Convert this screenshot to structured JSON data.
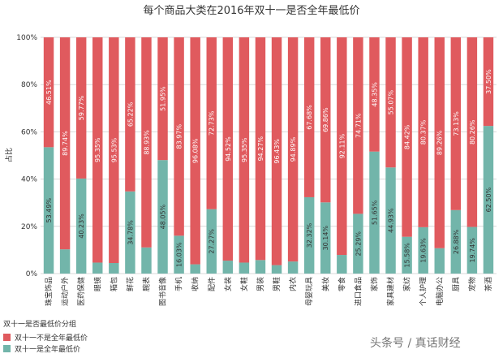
{
  "colors": {
    "not_lowest": "#e05a5e",
    "lowest": "#72b5aa",
    "grid": "#d9d9d9",
    "text": "#333333"
  },
  "watermark": "头条号 / 真话财经",
  "chart_data": {
    "type": "bar",
    "stacked": true,
    "title": "每个商品大类在2016年双十一是否全年最低价",
    "ylabel": "占比",
    "ylim": [
      0,
      100
    ],
    "yticks": [
      "0%",
      "20%",
      "40%",
      "60%",
      "80%",
      "100%"
    ],
    "grid": true,
    "legend_title": "双十一是否最低价分组",
    "categories": [
      "珠宝饰品",
      "运动户外",
      "医药保健",
      "眼镜",
      "箱包",
      "鲜花",
      "腕表",
      "图书音像",
      "手机",
      "收纳",
      "配件",
      "女装",
      "女鞋",
      "男装",
      "男鞋",
      "内衣",
      "母婴玩具",
      "美妆",
      "零食",
      "进口食品",
      "家饰",
      "家具建材",
      "家纺",
      "个人护理",
      "电脑办公",
      "厨具",
      "宠物",
      "茶酒"
    ],
    "series": [
      {
        "name": "双十一是全年最低价",
        "values": [
          53.49,
          10.26,
          40.23,
          4.65,
          4.47,
          34.78,
          11.07,
          48.05,
          16.03,
          3.92,
          27.27,
          5.48,
          4.65,
          5.73,
          3.57,
          5.11,
          32.32,
          30.14,
          7.89,
          25.29,
          51.65,
          44.93,
          15.58,
          19.63,
          10.74,
          26.88,
          19.74,
          62.5
        ],
        "labels": [
          "53.49%",
          "",
          "40.23%",
          "",
          "",
          "34.78%",
          "",
          "48.05%",
          "16.03%",
          "",
          "27.27%",
          "",
          "",
          "",
          "",
          "",
          "32.32%",
          "30.14%",
          "",
          "25.29%",
          "51.65%",
          "44.93%",
          "15.58%",
          "19.63%",
          "",
          "26.88%",
          "19.74%",
          "62.50%"
        ]
      },
      {
        "name": "双十一不是全年最低价",
        "values": [
          46.51,
          89.74,
          59.77,
          95.35,
          95.53,
          65.22,
          88.93,
          51.95,
          83.97,
          96.08,
          72.73,
          94.52,
          95.35,
          94.27,
          96.43,
          94.89,
          67.68,
          69.86,
          92.11,
          74.71,
          48.35,
          55.07,
          84.42,
          80.37,
          89.26,
          73.13,
          80.26,
          37.5
        ],
        "labels": [
          "46.51%",
          "89.74%",
          "59.77%",
          "95.35%",
          "95.53%",
          "65.22%",
          "88.93%",
          "51.95%",
          "83.97%",
          "96.08%",
          "72.73%",
          "94.52%",
          "95.35%",
          "94.27%",
          "96.43%",
          "94.89%",
          "67.68%",
          "69.86%",
          "92.11%",
          "74.71%",
          "48.35%",
          "55.07%",
          "84.42%",
          "80.37%",
          "89.26%",
          "73.13%",
          "80.26%",
          "37.50%"
        ]
      }
    ]
  }
}
